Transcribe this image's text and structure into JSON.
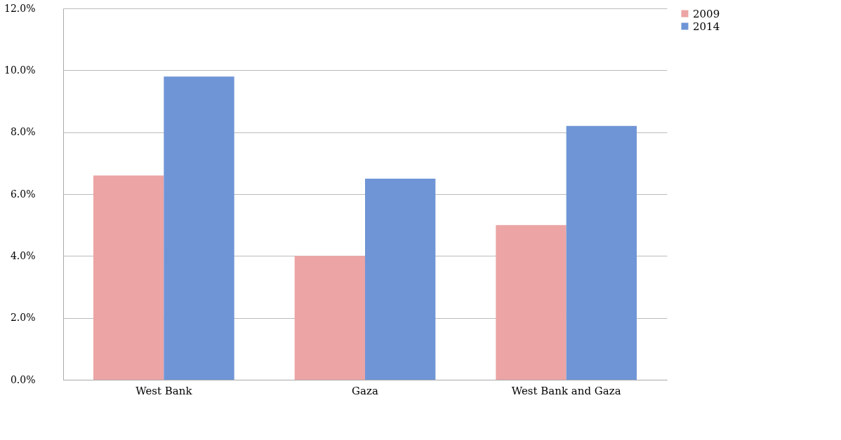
{
  "chart_data": {
    "type": "bar",
    "categories": [
      "West Bank",
      "Gaza",
      "West Bank and Gaza"
    ],
    "series": [
      {
        "name": "2009",
        "color": "#eca4a4",
        "values": [
          6.6,
          4.0,
          5.0
        ]
      },
      {
        "name": "2014",
        "color": "#6f95d6",
        "values": [
          9.8,
          6.5,
          8.2
        ]
      }
    ],
    "ylim": [
      0,
      12
    ],
    "yticks": [
      {
        "value": 0,
        "label": "0.0%"
      },
      {
        "value": 2,
        "label": "2.0%"
      },
      {
        "value": 4,
        "label": "4.0%"
      },
      {
        "value": 6,
        "label": "6.0%"
      },
      {
        "value": 8,
        "label": "8.0%"
      },
      {
        "value": 10,
        "label": "10.0%"
      },
      {
        "value": 12,
        "label": "12.0%"
      }
    ],
    "grid": "y",
    "legend": "right"
  }
}
